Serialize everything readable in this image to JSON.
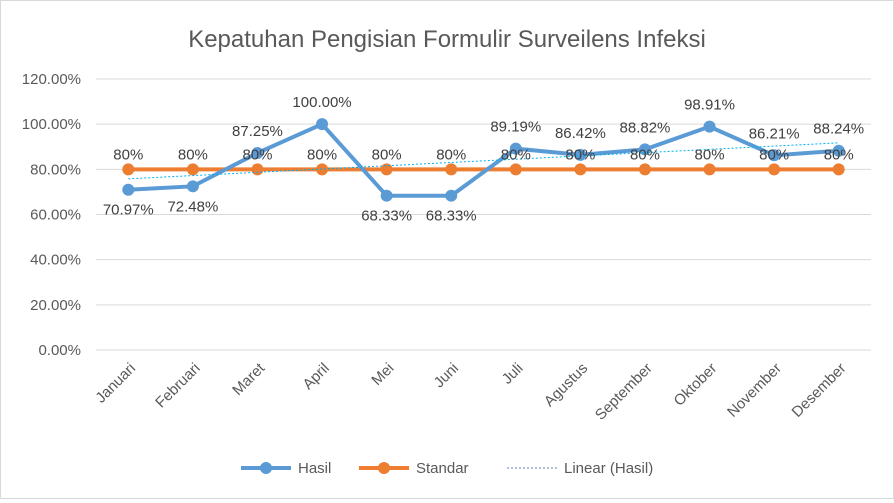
{
  "chart_data": {
    "type": "line",
    "title": "Kepatuhan Pengisian Formulir Surveilens Infeksi",
    "categories": [
      "Januari",
      "Februari",
      "Maret",
      "April",
      "Mei",
      "Juni",
      "Juli",
      "Agustus",
      "September",
      "Oktober",
      "November",
      "Desember"
    ],
    "series": [
      {
        "name": "Hasil",
        "color": "#5b9bd5",
        "values": [
          70.97,
          72.48,
          87.25,
          100.0,
          68.33,
          68.33,
          89.19,
          86.42,
          88.82,
          98.91,
          86.21,
          88.24
        ],
        "labels": [
          "70.97%",
          "72.48%",
          "87.25%",
          "100.00%",
          "68.33%",
          "68.33%",
          "89.19%",
          "86.42%",
          "88.82%",
          "98.91%",
          "86.21%",
          "88.24%"
        ]
      },
      {
        "name": "Standar",
        "color": "#ed7d31",
        "values": [
          80,
          80,
          80,
          80,
          80,
          80,
          80,
          80,
          80,
          80,
          80,
          80
        ],
        "labels": [
          "80%",
          "80%",
          "80%",
          "80%",
          "80%",
          "80%",
          "80%",
          "80%",
          "80%",
          "80%",
          "80%",
          "80%"
        ]
      }
    ],
    "trendline": {
      "name": "Linear (Hasil)",
      "of": "Hasil",
      "type": "linear",
      "color": "#00b0f0"
    },
    "yticks": [
      "0.00%",
      "20.00%",
      "40.00%",
      "60.00%",
      "80.00%",
      "100.00%",
      "120.00%"
    ],
    "ylim": [
      0,
      120
    ],
    "grid": true,
    "legend": "bottom"
  }
}
